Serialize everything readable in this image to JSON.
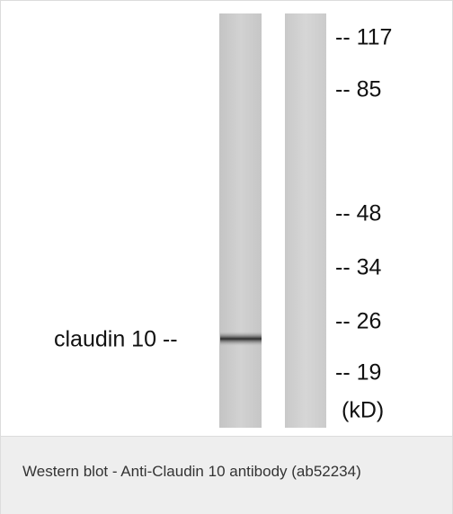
{
  "blot": {
    "markers": [
      "-- 117",
      "-- 85",
      "-- 48",
      "-- 34",
      "-- 26",
      "-- 19"
    ],
    "unit": "(kD)",
    "band_label": "claudin 10 --"
  },
  "caption": "Western blot - Anti-Claudin 10 antibody (ab52234)"
}
